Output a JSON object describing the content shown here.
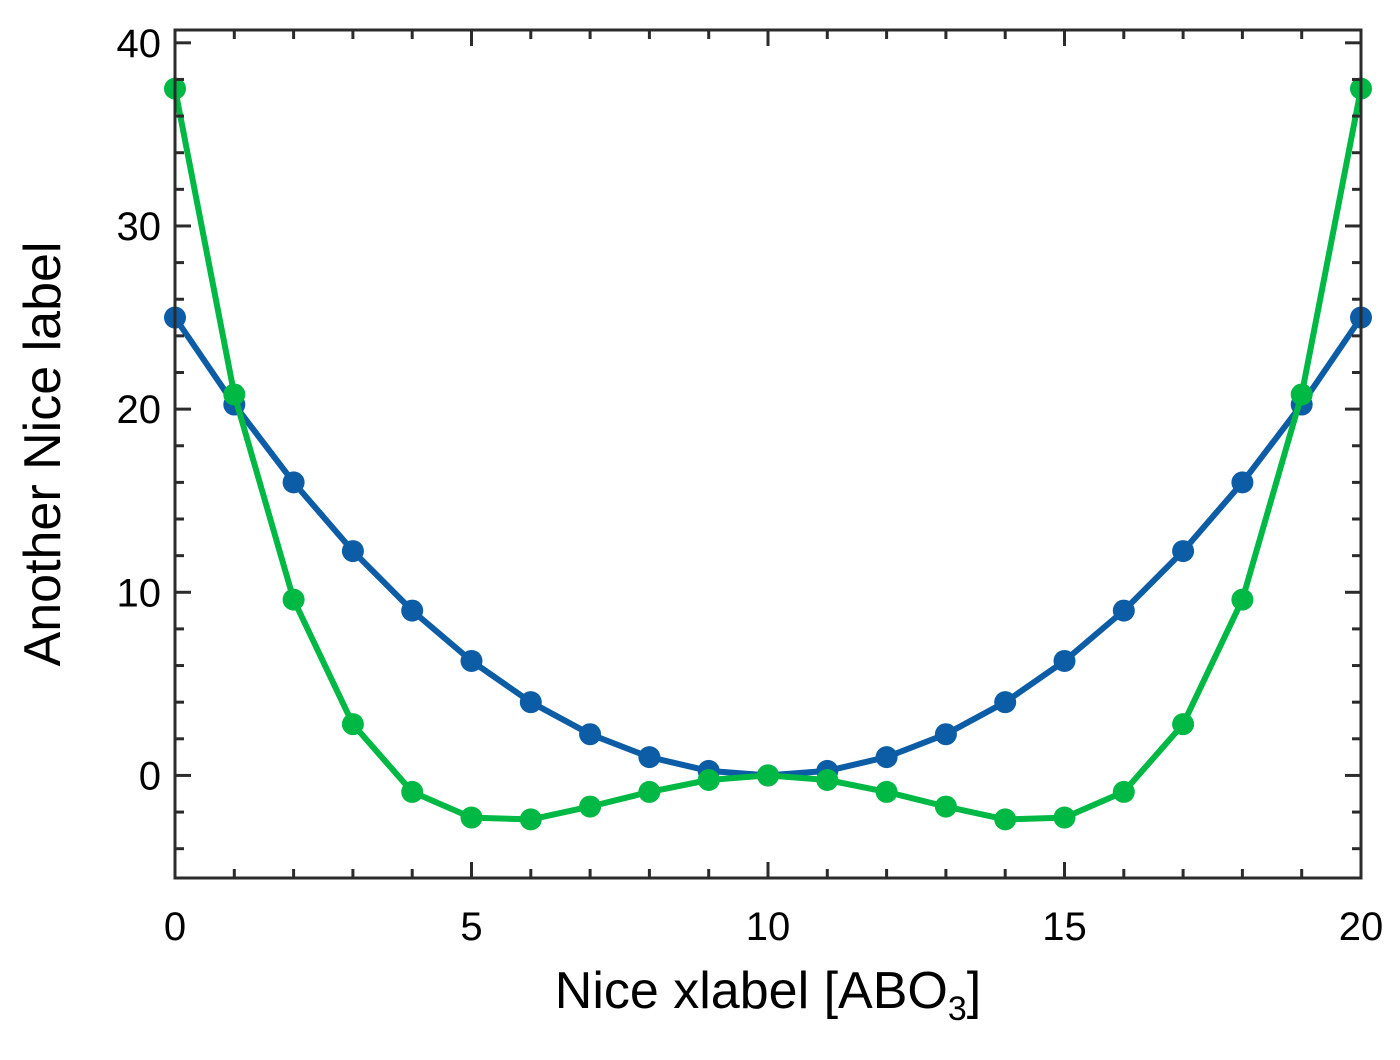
{
  "chart_data": {
    "type": "line",
    "title": "",
    "xlabel": "Nice xlabel [ABO",
    "xlabel_subscript": "3",
    "xlabel_suffix": "]",
    "ylabel": "Another Nice label",
    "xlim": [
      0,
      20
    ],
    "ylim": [
      -5.6,
      40.7
    ],
    "x_ticks": [
      0,
      5,
      10,
      15,
      20
    ],
    "x_tick_labels": [
      "0",
      "5",
      "10",
      "15",
      "20"
    ],
    "y_ticks": [
      0,
      10,
      20,
      30,
      40
    ],
    "y_tick_labels": [
      "0",
      "10",
      "20",
      "30",
      "40"
    ],
    "x_minor_ticks": [
      1,
      2,
      3,
      4,
      6,
      7,
      8,
      9,
      11,
      12,
      13,
      14,
      16,
      17,
      18,
      19
    ],
    "y_minor_ticks": [
      -4,
      -2,
      2,
      4,
      6,
      8,
      12,
      14,
      16,
      18,
      22,
      24,
      26,
      28,
      32,
      34,
      36,
      38
    ],
    "grid": false,
    "legend": "none",
    "x": [
      0,
      1,
      2,
      3,
      4,
      5,
      6,
      7,
      8,
      9,
      10,
      11,
      12,
      13,
      14,
      15,
      16,
      17,
      18,
      19,
      20
    ],
    "series": [
      {
        "color": "#0c5da5",
        "values": [
          25.0,
          20.25,
          16.0,
          12.25,
          9.0,
          6.25,
          4.0,
          2.25,
          1.0,
          0.25,
          0.0,
          0.25,
          1.0,
          2.25,
          4.0,
          6.25,
          9.0,
          12.25,
          16.0,
          20.25,
          25.0
        ]
      },
      {
        "color": "#00b945",
        "values": [
          37.5,
          20.8,
          9.6,
          2.8,
          -0.9,
          -2.3,
          -2.4,
          -1.7,
          -0.9,
          -0.25,
          0.0,
          -0.25,
          -0.9,
          -1.7,
          -2.4,
          -2.3,
          -0.9,
          2.8,
          9.6,
          20.8,
          37.5
        ]
      }
    ]
  }
}
